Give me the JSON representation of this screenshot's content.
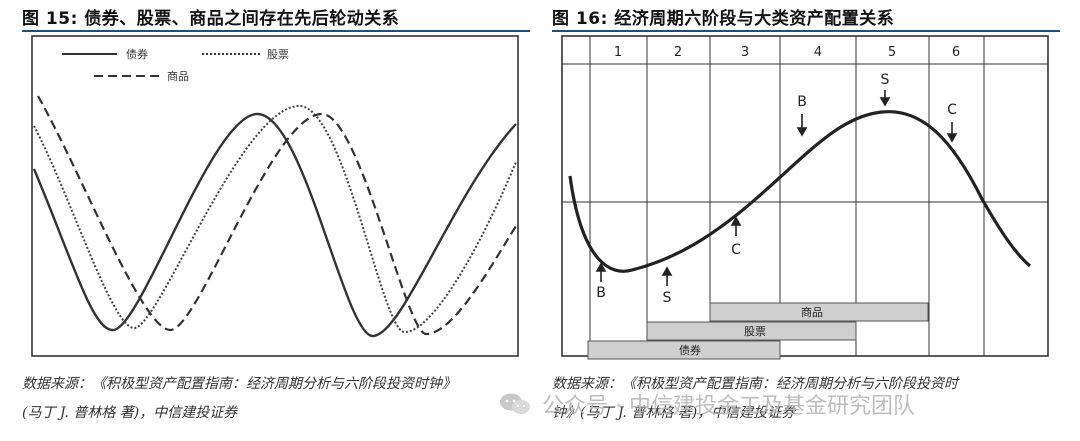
{
  "figures": {
    "left": {
      "title": "图 15: 债券、股票、商品之间存在先后轮动关系",
      "legend": {
        "bond": "债券",
        "stock": "股票",
        "commodity": "商品"
      },
      "source_line1": "数据来源：《积极型资产配置指南：经济周期分析与六阶段投资时钟》",
      "source_line2": "(马丁 J. 普林格  著)，中信建投证券"
    },
    "right": {
      "title": "图 16: 经济周期六阶段与大类资产配置关系",
      "stages": [
        "1",
        "2",
        "3",
        "4",
        "5",
        "6"
      ],
      "markers": {
        "b_low": "B",
        "s_low": "S",
        "c_low": "C",
        "b_high": "B",
        "s_high": "S",
        "c_high": "C"
      },
      "bars": {
        "commodity": "商品",
        "stock": "股票",
        "bond": "债券"
      },
      "source_line1": "数据来源：《积极型资产配置指南：经济周期分析与六阶段投资时",
      "source_line2": "钟》(马丁 J. 普林格  著)，中信建投证券"
    }
  },
  "watermark": {
    "text": "公众号 · 中信建投金工及基金研究团队"
  },
  "colors": {
    "rule": "#1f4e79",
    "line": "#333333",
    "bar_fill": "#cfcfcf",
    "watermark": "#b8b8b8"
  }
}
